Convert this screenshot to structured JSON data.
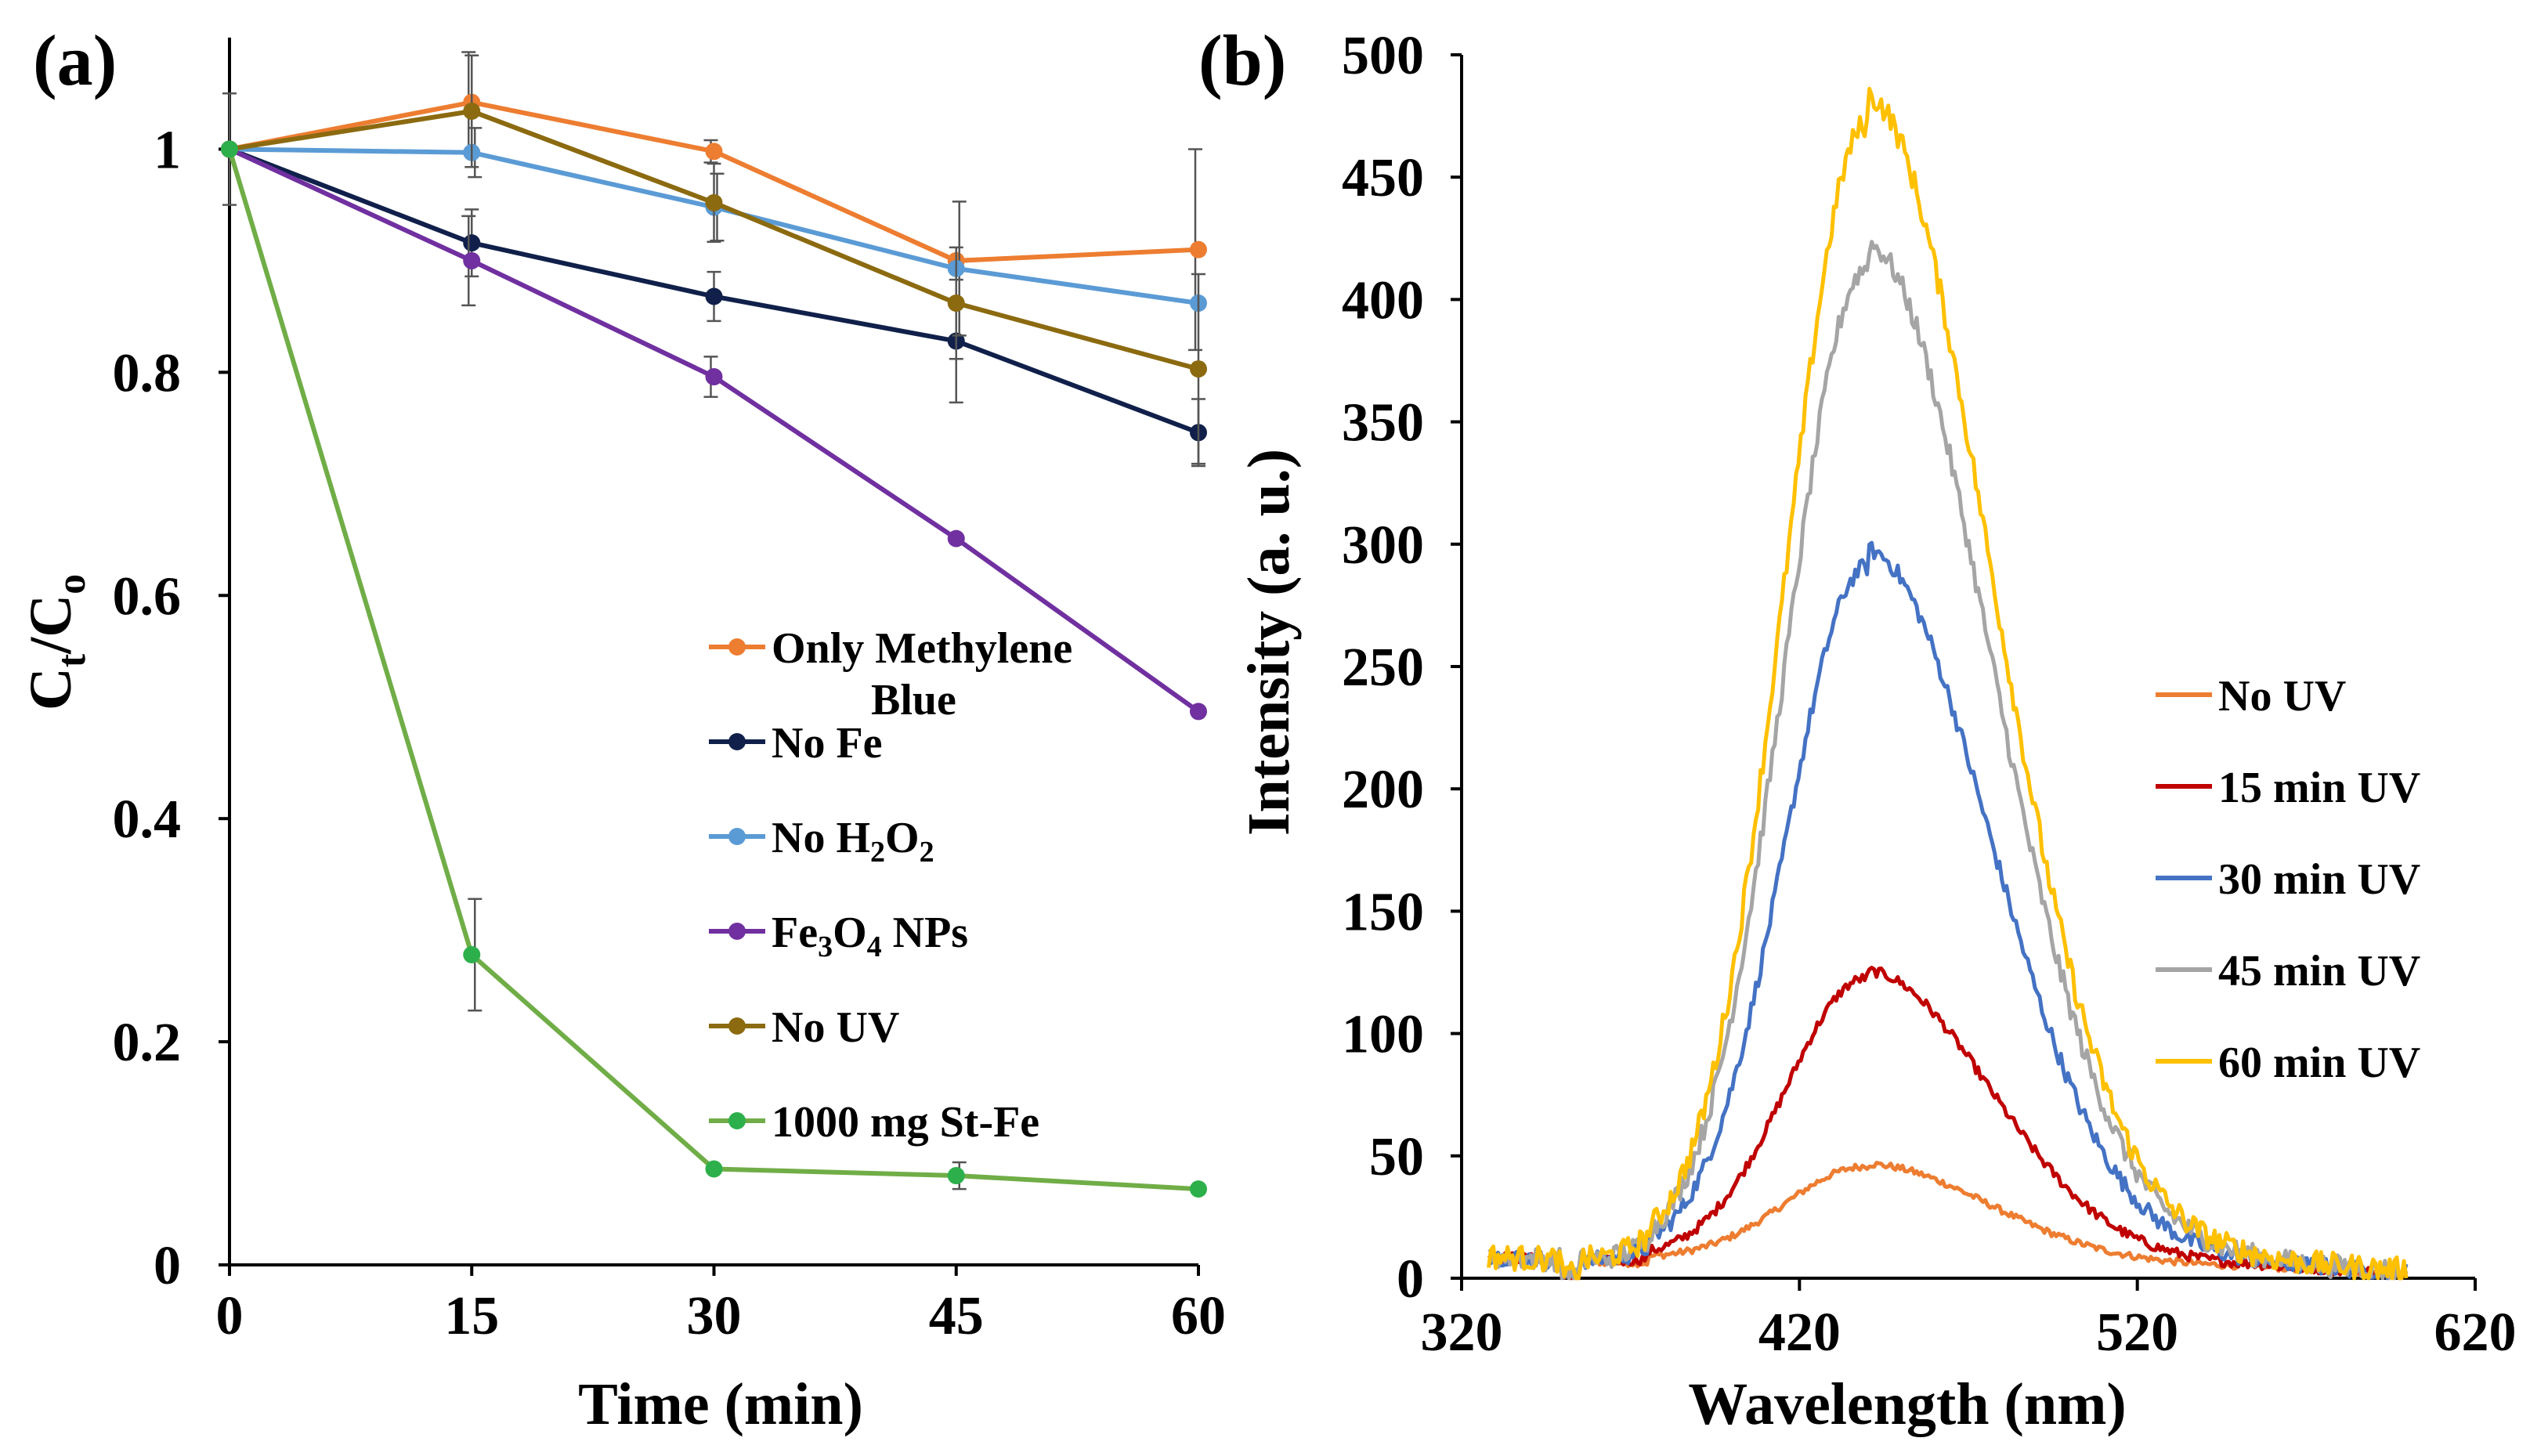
{
  "chart_data": [
    {
      "panel": "(a)",
      "type": "line",
      "xlabel": "Time (min)",
      "ylabel": {
        "main": "C",
        "sub1": "t",
        "slash": "/C",
        "sub2": "o"
      },
      "x": [
        0,
        15,
        30,
        45,
        60
      ],
      "xticks": [
        "0",
        "15",
        "30",
        "45",
        "60"
      ],
      "yticks": [
        "0",
        "0.2",
        "0.4",
        "0.6",
        "0.8",
        "1"
      ],
      "xlim": [
        0,
        60
      ],
      "ylim": [
        0,
        1.1
      ],
      "series": [
        {
          "name": "Only Methylene Blue",
          "label_lines": [
            "Only Methylene",
            "Blue"
          ],
          "color": "#ED7D31",
          "values": [
            1.0,
            1.042,
            0.998,
            0.9,
            0.91
          ],
          "errors": [
            0.0,
            0.045,
            0.01,
            0.0,
            0.09
          ]
        },
        {
          "name": "No Fe",
          "label_lines": [
            "No Fe"
          ],
          "color": "#10204A",
          "values": [
            1.0,
            0.916,
            0.868,
            0.828,
            0.746
          ],
          "errors": [
            0.0,
            0.03,
            0.022,
            0.055,
            0.03
          ]
        },
        {
          "name": "No H2O2",
          "label_parts": [
            [
              "No H",
              ""
            ],
            [
              "2",
              "sub"
            ],
            [
              "O",
              ""
            ],
            [
              "2",
              "sub"
            ]
          ],
          "color": "#5B9BD5",
          "values": [
            1.0,
            0.997,
            0.948,
            0.893,
            0.862
          ],
          "errors": [
            0.0,
            0.022,
            0.03,
            0.06,
            0.0
          ]
        },
        {
          "name": "Fe3O4 NPs",
          "label_parts": [
            [
              "Fe",
              ""
            ],
            [
              "3",
              "sub"
            ],
            [
              "O",
              ""
            ],
            [
              "4",
              "sub"
            ],
            [
              " NPs",
              ""
            ]
          ],
          "color": "#7030A0",
          "values": [
            1.0,
            0.9,
            0.796,
            0.651,
            0.496
          ],
          "errors": [
            0.0,
            0.04,
            0.018,
            0.0,
            0.0
          ]
        },
        {
          "name": "No UV",
          "label_lines": [
            "No UV"
          ],
          "color": "#8B6A10",
          "values": [
            1.0,
            1.034,
            0.952,
            0.862,
            0.803
          ],
          "errors": [
            0.05,
            0.05,
            0.035,
            0.05,
            0.085
          ]
        },
        {
          "name": "1000 mg St-Fe",
          "label_lines": [
            "1000 mg St-Fe"
          ],
          "color": "#70AD47",
          "marker_color": "#2DB04B",
          "values": [
            1.0,
            0.278,
            0.086,
            0.08,
            0.068
          ],
          "errors": [
            0.0,
            0.05,
            0.0,
            0.012,
            0.0
          ]
        }
      ]
    },
    {
      "panel": "(b)",
      "type": "line",
      "xlabel": "Wavelength (nm)",
      "ylabel": "Intensity (a. u.)",
      "xticks": [
        "320",
        "420",
        "520",
        "620"
      ],
      "yticks": [
        "0",
        "50",
        "100",
        "150",
        "200",
        "250",
        "300",
        "350",
        "400",
        "450",
        "500"
      ],
      "xlim": [
        320,
        620
      ],
      "ylim": [
        0,
        500
      ],
      "x_range": [
        328,
        600
      ],
      "peak_wavelength": 440,
      "series": [
        {
          "name": "No UV",
          "color": "#ED7D31",
          "peak": 39
        },
        {
          "name": "15 min UV",
          "color": "#C00000",
          "peak": 116
        },
        {
          "name": "30 min UV",
          "color": "#4472C4",
          "peak": 284
        },
        {
          "name": "45 min UV",
          "color": "#A5A5A5",
          "peak": 406
        },
        {
          "name": "60 min UV",
          "color": "#FFC000",
          "peak": 465
        }
      ]
    }
  ]
}
